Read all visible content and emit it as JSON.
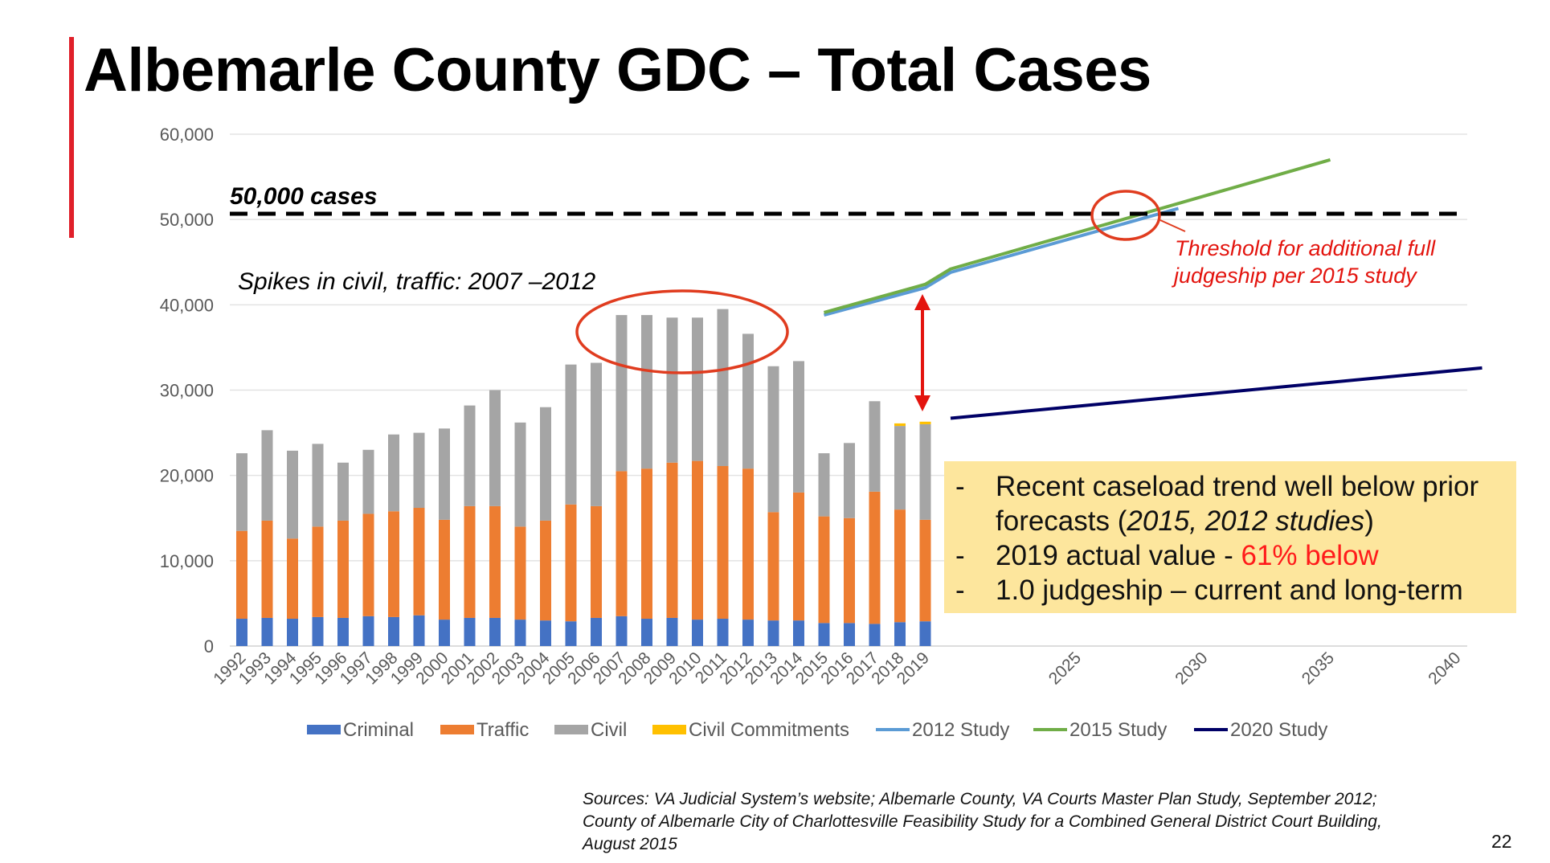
{
  "slide": {
    "title": "Albemarle County GDC – Total Cases",
    "page_number": "22",
    "callout": {
      "bullet": "-",
      "line1": "Recent caseload trend well below prior",
      "line2_pre": "forecasts (",
      "line2_it": "2015, 2012 studies",
      "line2_post": ")",
      "line3_pre": "2019 actual value - ",
      "line3_red": "61% below",
      "line4": "1.0 judgeship – current and long-term"
    },
    "sources": [
      "Sources:  VA Judicial System’s website; Albemarle County, VA Courts Master Plan Study, September 2012;",
      "County of Albemarle City of Charlottesville Feasibility Study for a Combined General District Court Building,",
      "August 2015"
    ]
  },
  "chart_data": {
    "type": "bar",
    "stacked": true,
    "categories": [
      "1992",
      "1993",
      "1994",
      "1995",
      "1996",
      "1997",
      "1998",
      "1999",
      "2000",
      "2001",
      "2002",
      "2003",
      "2004",
      "2005",
      "2006",
      "2007",
      "2008",
      "2009",
      "2010",
      "2011",
      "2012",
      "2013",
      "2014",
      "2015",
      "2016",
      "2017",
      "2018",
      "2019"
    ],
    "series": [
      {
        "name": "Criminal",
        "color": "#4472c4",
        "values": [
          3200,
          3300,
          3200,
          3400,
          3300,
          3500,
          3400,
          3600,
          3100,
          3300,
          3300,
          3100,
          3000,
          2900,
          3300,
          3500,
          3200,
          3300,
          3100,
          3200,
          3100,
          3000,
          3000,
          2700,
          2700,
          2600,
          2800,
          2900
        ]
      },
      {
        "name": "Traffic",
        "color": "#ed7d31",
        "values": [
          10300,
          11400,
          9400,
          10600,
          11400,
          12000,
          12400,
          12600,
          11700,
          13100,
          13100,
          10900,
          11700,
          13700,
          13100,
          17000,
          17600,
          18200,
          18600,
          17900,
          17700,
          12700,
          15000,
          12500,
          12300,
          15500,
          13200,
          11900
        ]
      },
      {
        "name": "Civil",
        "color": "#a5a5a5",
        "values": [
          9100,
          10600,
          10300,
          9700,
          6800,
          7500,
          9000,
          8800,
          10700,
          11800,
          13600,
          12200,
          13300,
          16400,
          16800,
          18300,
          18000,
          17000,
          16800,
          18400,
          15800,
          17100,
          15400,
          7400,
          8800,
          10600,
          9800,
          11200
        ]
      },
      {
        "name": "Civil Commitments",
        "color": "#ffc000",
        "values": [
          0,
          0,
          0,
          0,
          0,
          0,
          0,
          0,
          0,
          0,
          0,
          0,
          0,
          0,
          0,
          0,
          0,
          0,
          0,
          0,
          0,
          0,
          0,
          0,
          0,
          0,
          300,
          300
        ]
      }
    ],
    "lines": [
      {
        "name": "2012 Study",
        "color": "#5b9bd5",
        "points": [
          [
            2015,
            38800
          ],
          [
            2019,
            42000
          ],
          [
            2020,
            43800
          ],
          [
            2029,
            51300
          ]
        ]
      },
      {
        "name": "2015 Study",
        "color": "#70ad47",
        "points": [
          [
            2015,
            39100
          ],
          [
            2019,
            42400
          ],
          [
            2020,
            44200
          ],
          [
            2035,
            57000
          ]
        ]
      },
      {
        "name": "2020 Study",
        "color": "#000066",
        "points": [
          [
            2020,
            26700
          ],
          [
            2041,
            32600
          ]
        ]
      }
    ],
    "x_ticks_future": [
      "2025",
      "2030",
      "2035",
      "2040"
    ],
    "y_ticks": [
      "0",
      "10,000",
      "20,000",
      "30,000",
      "40,000",
      "50,000",
      "60,000"
    ],
    "ylim": [
      0,
      60000
    ],
    "threshold": {
      "value": 50500,
      "label": "50,000 cases"
    },
    "annotations": {
      "spikes": "Spikes in civil, traffic: 2007 –2012",
      "threshold_line1": "Threshold for additional full",
      "threshold_line2": "judgeship per 2015 study"
    },
    "legend": [
      "Criminal",
      "Traffic",
      "Civil",
      "Civil Commitments",
      "2012 Study",
      "2015 Study",
      "2020 Study"
    ]
  }
}
